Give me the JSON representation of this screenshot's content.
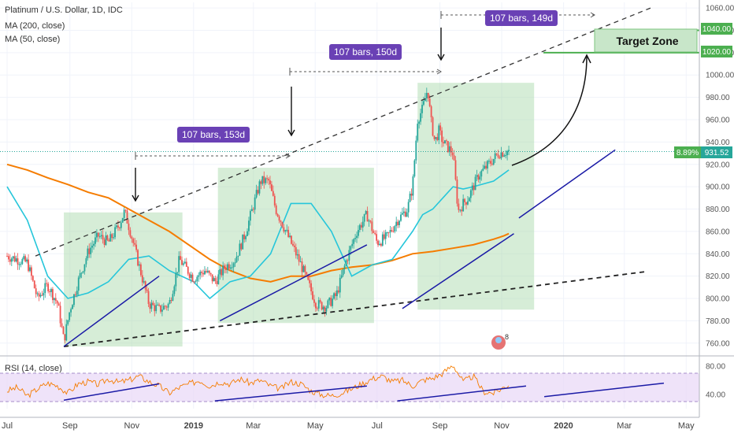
{
  "legend": {
    "symbol_line": "Platinum / U.S. Dollar, 1D, IDC",
    "ma200_label": "MA (200, close)",
    "ma50_label": "MA (50, close)"
  },
  "rsi_legend": "RSI (14, close)",
  "annotations": {
    "bars_1": "107 bars, 153d",
    "bars_2": "107 bars, 150d",
    "bars_3": "107 bars, 149d",
    "target_zone": "Target Zone",
    "price_change": "8.89%",
    "current_price": "931.52",
    "level_high": "1040.00",
    "level_low": "1020.00",
    "logo_badge": "8"
  },
  "colors": {
    "price_up": "#26a69a",
    "price_down": "#ef5350",
    "ma200": "#f57c00",
    "ma50": "#26c6da",
    "trendline": "#1a1aa6",
    "box": "#a5d6a7",
    "target_green": "#4caf50",
    "label_purple": "#6a41b5",
    "rsi_line": "#f57c00",
    "rsi_band": "#e8d7f7"
  },
  "chart_data": {
    "type": "line",
    "ylim": [
      750,
      1065
    ],
    "yticks": [
      "1060.00",
      "1040.00",
      "1020.00",
      "1000.00",
      "980.00",
      "960.00",
      "940.00",
      "920.00",
      "900.00",
      "880.00",
      "860.00",
      "840.00",
      "820.00",
      "800.00",
      "780.00",
      "760.00"
    ],
    "ytick_values": [
      1060,
      1040,
      1020,
      1000,
      980,
      960,
      940,
      920,
      900,
      880,
      860,
      840,
      820,
      800,
      780,
      760
    ],
    "xticks": [
      "Jul",
      "Sep",
      "Nov",
      "2019",
      "Mar",
      "May",
      "Jul",
      "Sep",
      "Nov",
      "2020",
      "Mar",
      "May"
    ],
    "xtick_days": [
      0,
      62,
      123,
      184,
      243,
      304,
      365,
      427,
      488,
      549,
      609,
      670
    ],
    "x_domain_days": [
      -7,
      683
    ],
    "series": [
      {
        "x": [
          0,
          10,
          20,
          30,
          40,
          50,
          56,
          62,
          70,
          80,
          90,
          100,
          110,
          116,
          123,
          130,
          140,
          150,
          160,
          170,
          184,
          195,
          205,
          215,
          225,
          235,
          242,
          250,
          258,
          265,
          275,
          290,
          305,
          315,
          325,
          335,
          345,
          355,
          365,
          375,
          385,
          395,
          400,
          405,
          410,
          415,
          418,
          422,
          426,
          430,
          440,
          445,
          450,
          455,
          460,
          465,
          475,
          485,
          495
        ],
        "values": [
          838,
          835,
          832,
          800,
          812,
          795,
          762,
          790,
          815,
          842,
          856,
          850,
          865,
          878,
          855,
          830,
          795,
          790,
          795,
          835,
          818,
          825,
          815,
          828,
          835,
          858,
          880,
          905,
          905,
          880,
          860,
          830,
          795,
          793,
          803,
          835,
          860,
          875,
          850,
          855,
          870,
          880,
          900,
          960,
          970,
          988,
          960,
          940,
          950,
          940,
          930,
          878,
          885,
          890,
          900,
          910,
          920,
          930,
          932
        ]
      },
      {
        "x": [
          0,
          20,
          40,
          60,
          80,
          100,
          120,
          140,
          160,
          184,
          200,
          220,
          240,
          260,
          280,
          300,
          320,
          340,
          360,
          380,
          400,
          420,
          440,
          460,
          480,
          490,
          495
        ],
        "values": [
          920,
          915,
          908,
          902,
          895,
          890,
          880,
          870,
          860,
          845,
          835,
          825,
          818,
          815,
          820,
          820,
          825,
          828,
          830,
          834,
          840,
          842,
          845,
          848,
          853,
          856,
          858
        ]
      },
      {
        "x": [
          0,
          20,
          40,
          60,
          80,
          100,
          120,
          140,
          160,
          184,
          200,
          220,
          240,
          260,
          280,
          300,
          320,
          340,
          360,
          380,
          400,
          410,
          420,
          430,
          440,
          450,
          460,
          480,
          495
        ],
        "values": [
          900,
          870,
          820,
          800,
          805,
          815,
          835,
          838,
          825,
          815,
          800,
          815,
          820,
          840,
          885,
          885,
          860,
          820,
          830,
          835,
          860,
          875,
          880,
          890,
          900,
          898,
          900,
          905,
          915
        ]
      },
      {
        "x": [
          0,
          10,
          20,
          30,
          40,
          50,
          60,
          70,
          80,
          90,
          100,
          110,
          120,
          130,
          140,
          150,
          160,
          170,
          180,
          190,
          200,
          210,
          220,
          230,
          240,
          250,
          260,
          270,
          280,
          290,
          300,
          310,
          320,
          330,
          340,
          350,
          360,
          370,
          380,
          390,
          400,
          410,
          420,
          430,
          440,
          450,
          460,
          470,
          480,
          490,
          495
        ],
        "values": [
          45,
          50,
          38,
          48,
          56,
          52,
          42,
          55,
          58,
          54,
          62,
          57,
          60,
          66,
          58,
          52,
          42,
          50,
          55,
          60,
          52,
          58,
          55,
          62,
          56,
          60,
          52,
          48,
          58,
          55,
          45,
          40,
          38,
          42,
          48,
          55,
          62,
          66,
          58,
          60,
          52,
          60,
          63,
          70,
          82,
          58,
          66,
          44,
          42,
          50,
          54
        ]
      }
    ]
  }
}
